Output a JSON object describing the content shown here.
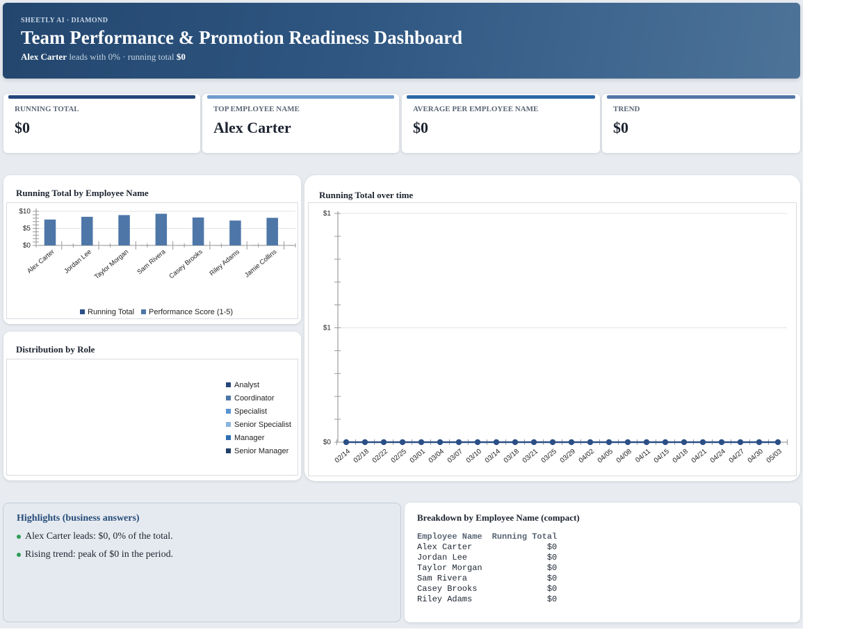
{
  "header": {
    "brand": "SHEETLY AI · DIAMOND",
    "title": "Team Performance & Promotion Readiness Dashboard",
    "subtitle_leader": "Alex Carter",
    "subtitle_middle": " leads with 0% · running total ",
    "subtitle_total": "$0"
  },
  "kpis": [
    {
      "label": "RUNNING TOTAL",
      "value": "$0",
      "color": "#24467a"
    },
    {
      "label": "TOP EMPLOYEE NAME",
      "value": "Alex Carter",
      "color": "#6f9ccd"
    },
    {
      "label": "AVERAGE PER EMPLOYEE NAME",
      "value": "$0",
      "color": "#2d67a6"
    },
    {
      "label": "TREND",
      "value": "$0",
      "color": "#5277a8"
    }
  ],
  "colors": {
    "running_total": "#2c4f86",
    "performance": "#4e77a8",
    "line": "#2b4f86",
    "highlight_bullet": "#2e9c56"
  },
  "charts": {
    "bar_title": "Running Total by Employee Name",
    "pie_title": "Distribution by Role",
    "line_title": "Running Total over time"
  },
  "chart_data": [
    {
      "type": "bar",
      "title": "Running Total by Employee Name",
      "categories": [
        "Alex Carter",
        "Jordan Lee",
        "Taylor Morgan",
        "Sam Rivera",
        "Casey Brooks",
        "Riley Adams",
        "Jamie Collins"
      ],
      "series": [
        {
          "name": "Running Total",
          "values": [
            0,
            0,
            0,
            0,
            0,
            0,
            0
          ]
        },
        {
          "name": "Performance Score (1-5)",
          "values": [
            7.6,
            8.4,
            8.9,
            9.3,
            8.2,
            7.3,
            8.1
          ]
        }
      ],
      "y_ticks": [
        "$10",
        "$5",
        "$0"
      ],
      "ylim": [
        0,
        10
      ],
      "grid": true,
      "legend": "bottom"
    },
    {
      "type": "pie",
      "title": "Distribution by Role",
      "legend_items": [
        {
          "name": "Analyst",
          "color": "#24467a"
        },
        {
          "name": "Coordinator",
          "color": "#4e77a8"
        },
        {
          "name": "Specialist",
          "color": "#5a93d2"
        },
        {
          "name": "Senior Specialist",
          "color": "#8ab4df"
        },
        {
          "name": "Manager",
          "color": "#2e6fb2"
        },
        {
          "name": "Senior Manager",
          "color": "#1f3f66"
        }
      ],
      "legend": "right"
    },
    {
      "type": "line",
      "title": "Running Total over time",
      "x": [
        "02/14",
        "02/18",
        "02/22",
        "02/25",
        "03/01",
        "03/04",
        "03/07",
        "03/10",
        "03/14",
        "03/18",
        "03/21",
        "03/25",
        "03/29",
        "04/02",
        "04/05",
        "04/08",
        "04/11",
        "04/15",
        "04/18",
        "04/21",
        "04/24",
        "04/27",
        "04/30",
        "05/03"
      ],
      "y": [
        0,
        0,
        0,
        0,
        0,
        0,
        0,
        0,
        0,
        0,
        0,
        0,
        0,
        0,
        0,
        0,
        0,
        0,
        0,
        0,
        0,
        0,
        0,
        0
      ],
      "y_ticks": [
        "$1",
        "$1",
        "$0"
      ],
      "ylim": [
        0,
        1
      ],
      "grid": true
    }
  ],
  "highlights": {
    "title": "Highlights (business answers)",
    "items": [
      "Alex Carter leads: $0, 0% of the total.",
      "Rising trend: peak of $0 in the period."
    ]
  },
  "breakdown": {
    "title": "Breakdown by Employee Name (compact)",
    "columns": [
      "Employee Name",
      "Running Total"
    ],
    "rows": [
      [
        "Alex Carter",
        "$0"
      ],
      [
        "Jordan Lee",
        "$0"
      ],
      [
        "Taylor Morgan",
        "$0"
      ],
      [
        "Sam Rivera",
        "$0"
      ],
      [
        "Casey Brooks",
        "$0"
      ],
      [
        "Riley Adams",
        "$0"
      ]
    ]
  }
}
